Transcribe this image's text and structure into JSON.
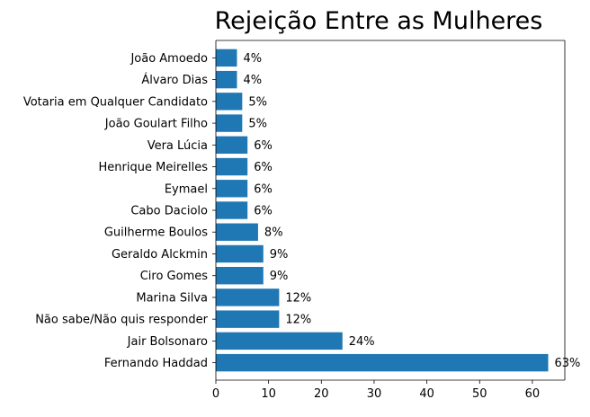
{
  "chart_data": {
    "type": "bar",
    "orientation": "horizontal",
    "title": "Rejeição Entre as Mulheres",
    "xlabel": "",
    "ylabel": "",
    "categories": [
      "João Amoedo",
      "Álvaro Dias",
      "Votaria em Qualquer Candidato",
      "João Goulart Filho",
      "Vera Lúcia",
      "Henrique Meirelles",
      "Eymael",
      "Cabo Daciolo",
      "Guilherme Boulos",
      "Geraldo Alckmin",
      "Ciro Gomes",
      "Marina Silva",
      "Não sabe/Não quis responder",
      "Jair Bolsonaro",
      "Fernando Haddad"
    ],
    "values": [
      4,
      4,
      5,
      5,
      6,
      6,
      6,
      6,
      8,
      9,
      9,
      12,
      12,
      24,
      63
    ],
    "value_labels": [
      "4%",
      "4%",
      "5%",
      "5%",
      "6%",
      "6%",
      "6%",
      "6%",
      "8%",
      "9%",
      "9%",
      "12%",
      "12%",
      "24%",
      "63%"
    ],
    "xticks": [
      0,
      10,
      20,
      30,
      40,
      50,
      60
    ],
    "xlim": [
      0,
      66.15
    ],
    "grid": false,
    "bar_color": "#1f77b4"
  }
}
